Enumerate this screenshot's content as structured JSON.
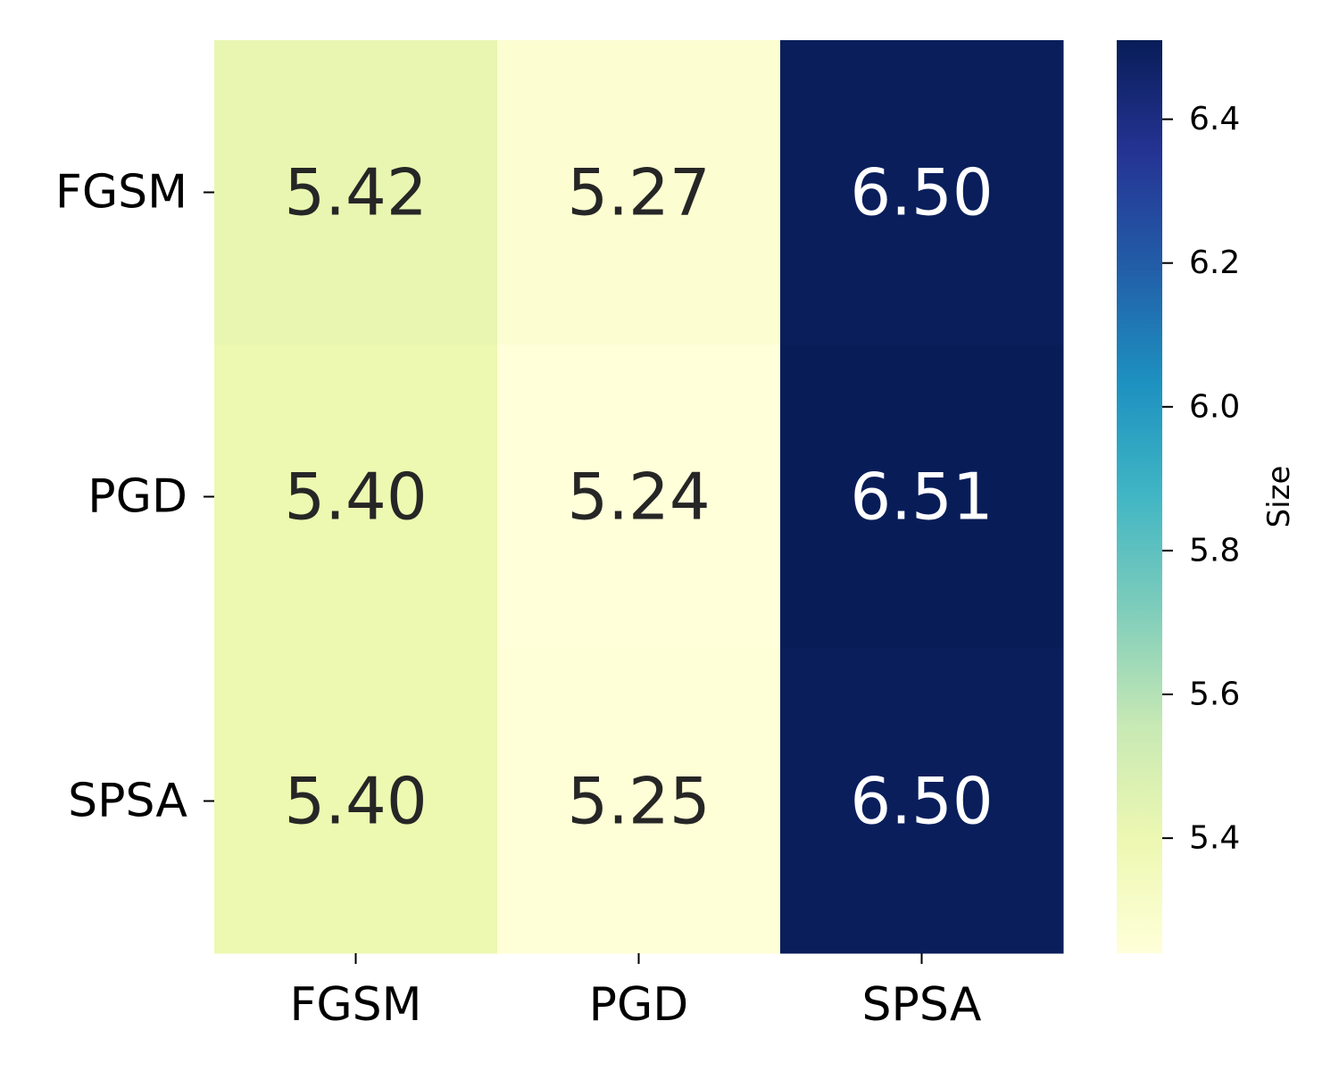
{
  "chart_data": {
    "type": "heatmap",
    "title": "",
    "xlabel": "",
    "ylabel": "",
    "x_categories": [
      "FGSM",
      "PGD",
      "SPSA"
    ],
    "y_categories": [
      "FGSM",
      "PGD",
      "SPSA"
    ],
    "values": [
      [
        5.42,
        5.27,
        6.5
      ],
      [
        5.4,
        5.24,
        6.51
      ],
      [
        5.4,
        5.25,
        6.5
      ]
    ],
    "cell_labels": [
      [
        "5.42",
        "5.27",
        "6.50"
      ],
      [
        "5.40",
        "5.24",
        "6.51"
      ],
      [
        "5.40",
        "5.25",
        "6.50"
      ]
    ],
    "colormap": "YlGnBu",
    "colorbar": {
      "label": "Size",
      "range": [
        5.24,
        6.51
      ],
      "ticks": [
        5.4,
        5.6,
        5.8,
        6.0,
        6.2,
        6.4
      ],
      "tick_labels": [
        "5.4",
        "5.6",
        "5.8",
        "6.0",
        "6.2",
        "6.4"
      ]
    },
    "grid": false,
    "legend": "colorbar-right"
  }
}
